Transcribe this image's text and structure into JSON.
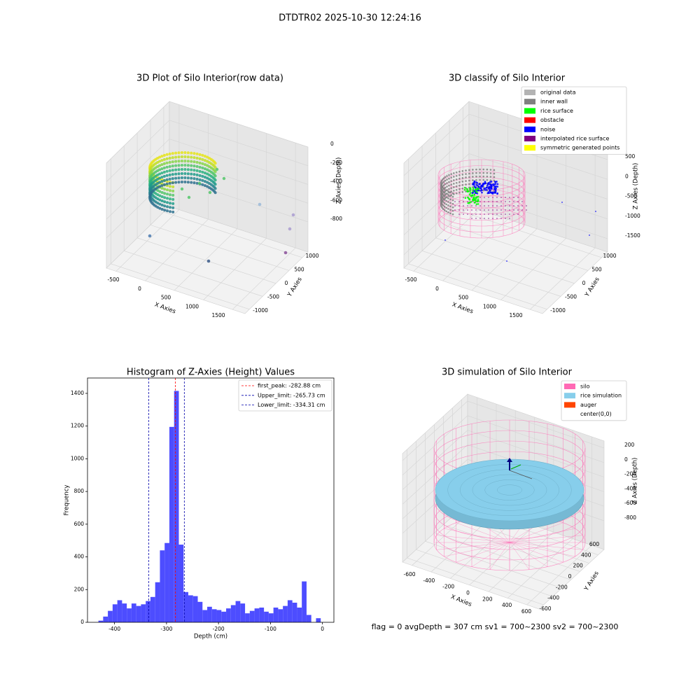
{
  "title": "DTDTR02 2025-10-30 12:24:16",
  "footer": "flag = 0     avgDepth = 307 cm  sv1 = 700~2300  sv2 = 700~2300",
  "chart_data": [
    {
      "type": "scatter3d",
      "title": "3D Plot of Silo Interior(row data)",
      "xlabel": "X Axies",
      "ylabel": "Y Axies",
      "zlabel": "Z Axies (Depth)",
      "xticks": [
        -500,
        0,
        500,
        1000,
        1500
      ],
      "yticks": [
        -1000,
        -500,
        0,
        500,
        1000
      ],
      "zticks": [
        0,
        -200,
        -400,
        -600,
        -800
      ]
    },
    {
      "type": "scatter3d",
      "title": "3D classify of Silo Interior",
      "xlabel": "X Axies",
      "ylabel": "Y Axies",
      "zlabel": "Z Axies (Depth)",
      "xticks": [
        -500,
        0,
        500,
        1000,
        1500
      ],
      "yticks": [
        -1000,
        -500,
        0,
        500,
        1000
      ],
      "zticks": [
        500,
        0,
        -500,
        -1000,
        -1500
      ],
      "legend_loc": "upper right",
      "legend": [
        {
          "name": "original data",
          "color": "#b3b3b3"
        },
        {
          "name": "inner wall",
          "color": "#808080"
        },
        {
          "name": "rice surface",
          "color": "#00ff00"
        },
        {
          "name": "obstacle",
          "color": "#ff0000"
        },
        {
          "name": "noise",
          "color": "#0000ff"
        },
        {
          "name": "interpolated rice surface",
          "color": "#800080"
        },
        {
          "name": "symmetric generated points",
          "color": "#ffff00"
        }
      ]
    },
    {
      "type": "histogram",
      "title": "Histogram of Z-Axies (Height) Values",
      "xlabel": "Depth (cm)",
      "ylabel": "Frequency",
      "color": "#4d4dff",
      "bins": [
        -431,
        -421.9,
        -412.8,
        -403.7,
        -394.6,
        -385.5,
        -376.4,
        -367.3,
        -358.2,
        -349.1,
        -340,
        -330.9,
        -321.8,
        -312.7,
        -303.6,
        -294.5,
        -285.4,
        -276.3,
        -267.2,
        -258.1,
        -249,
        -239.9,
        -230.8,
        -221.7,
        -212.6,
        -203.5,
        -194.4,
        -185.3,
        -176.2,
        -167.1,
        -158,
        -148.9,
        -139.8,
        -130.7,
        -121.6,
        -112.5,
        -103.4,
        -94.3,
        -85.2,
        -76.1,
        -67,
        -57.9,
        -48.8,
        -39.7,
        -30.6,
        -21.5,
        -12.4,
        -3.3
      ],
      "counts": [
        10,
        35,
        70,
        110,
        135,
        115,
        85,
        115,
        100,
        110,
        130,
        155,
        245,
        440,
        485,
        1195,
        1415,
        475,
        185,
        165,
        160,
        125,
        75,
        95,
        80,
        75,
        65,
        85,
        105,
        130,
        115,
        55,
        70,
        85,
        90,
        65,
        55,
        90,
        80,
        100,
        135,
        120,
        90,
        250,
        45,
        0,
        25
      ],
      "xlim": [
        -452,
        22
      ],
      "ylim": [
        0,
        1494
      ],
      "xticks": [
        -400,
        -300,
        -200,
        -100,
        0
      ],
      "yticks": [
        0,
        200,
        400,
        600,
        800,
        1000,
        1200,
        1400
      ],
      "legend_loc": "upper right",
      "vlines": [
        {
          "label": "first_peak: -282.88 cm",
          "value": -282.88,
          "color": "#ff0000"
        },
        {
          "label": "Upper_limit: -265.73 cm",
          "value": -265.73,
          "color": "#0000aa"
        },
        {
          "label": "Lower_limit: -334.31 cm",
          "value": -334.31,
          "color": "#0000aa"
        }
      ]
    },
    {
      "type": "surface3d",
      "title": "3D simulation of Silo Interior",
      "xlabel": "X Axies",
      "ylabel": "Y Axies",
      "zlabel": "Z Axies (Depth)",
      "xticks": [
        -600,
        -400,
        -200,
        0,
        200,
        400,
        600
      ],
      "yticks": [
        -600,
        -400,
        -200,
        0,
        200,
        400,
        600
      ],
      "zticks": [
        200,
        0,
        -200,
        -400,
        -600,
        -800
      ],
      "legend_loc": "upper right",
      "legend": [
        {
          "name": "silo",
          "color": "#ff69b4"
        },
        {
          "name": "rice simulation",
          "color": "#87ceeb"
        },
        {
          "name": "auger",
          "color": "#ff4500"
        },
        {
          "name": "center(0,0)",
          "color": "#ffffff"
        }
      ]
    }
  ]
}
